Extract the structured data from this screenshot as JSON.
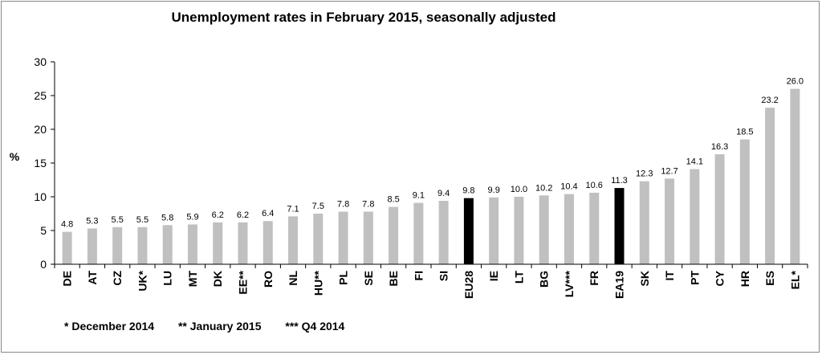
{
  "chart_data": {
    "type": "bar",
    "title": "Unemployment rates in February 2015, seasonally adjusted",
    "ylabel": "%",
    "ylim": [
      0,
      30
    ],
    "yticks": [
      0,
      5,
      10,
      15,
      20,
      25,
      30
    ],
    "categories": [
      "DE",
      "AT",
      "CZ",
      "UK*",
      "LU",
      "MT",
      "DK",
      "EE**",
      "RO",
      "NL",
      "HU**",
      "PL",
      "SE",
      "BE",
      "FI",
      "SI",
      "EU28",
      "IE",
      "LT",
      "BG",
      "LV***",
      "FR",
      "EA19",
      "SK",
      "IT",
      "PT",
      "CY",
      "HR",
      "ES",
      "EL*"
    ],
    "value_labels": [
      "4.8",
      "5.3",
      "5.5",
      "5.5",
      "5.8",
      "5.9",
      "6.2",
      "6.2",
      "6.4",
      "7.1",
      "7.5",
      "7.8",
      "7.8",
      "8.5",
      "9.1",
      "9.4",
      "9.8",
      "9.9",
      "10.0",
      "10.2",
      "10.4",
      "10.6",
      "11.3",
      "12.3",
      "12.7",
      "14.1",
      "16.3",
      "18.5",
      "23.2",
      "26.0"
    ],
    "values": [
      4.8,
      5.3,
      5.5,
      5.5,
      5.8,
      5.9,
      6.2,
      6.2,
      6.4,
      7.1,
      7.5,
      7.8,
      7.8,
      8.5,
      9.1,
      9.4,
      9.8,
      9.9,
      10.0,
      10.2,
      10.4,
      10.6,
      11.3,
      12.3,
      12.7,
      14.1,
      16.3,
      18.5,
      23.2,
      26.0
    ],
    "highlighted": [
      "EU28",
      "EA19"
    ],
    "colors": {
      "bar": "#c0c0c0",
      "highlight": "#000000"
    },
    "grid": false,
    "legend": "none"
  },
  "footnotes": [
    "* December 2014",
    "** January 2015",
    "*** Q4 2014"
  ]
}
